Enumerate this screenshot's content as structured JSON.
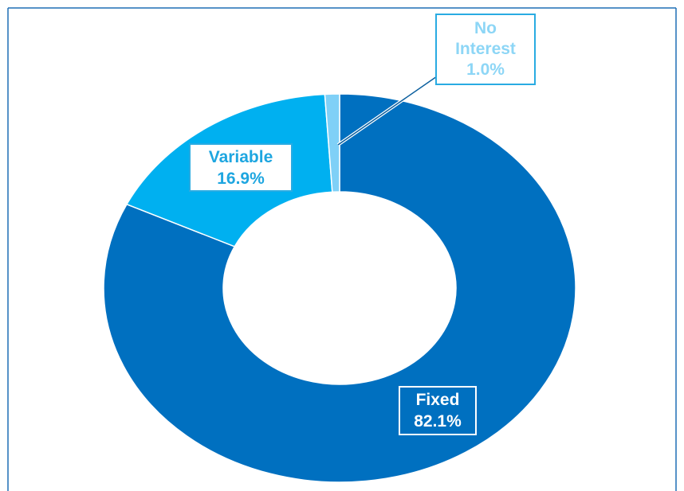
{
  "chart_data": {
    "type": "donut",
    "categories": [
      "Fixed",
      "Variable",
      "No Interest"
    ],
    "values": [
      82.1,
      16.9,
      1.0
    ],
    "value_labels": [
      "82.1%",
      "16.9%",
      "1.0%"
    ],
    "colors": [
      "#0070c0",
      "#00b0f0",
      "#7fd0f7"
    ]
  }
}
